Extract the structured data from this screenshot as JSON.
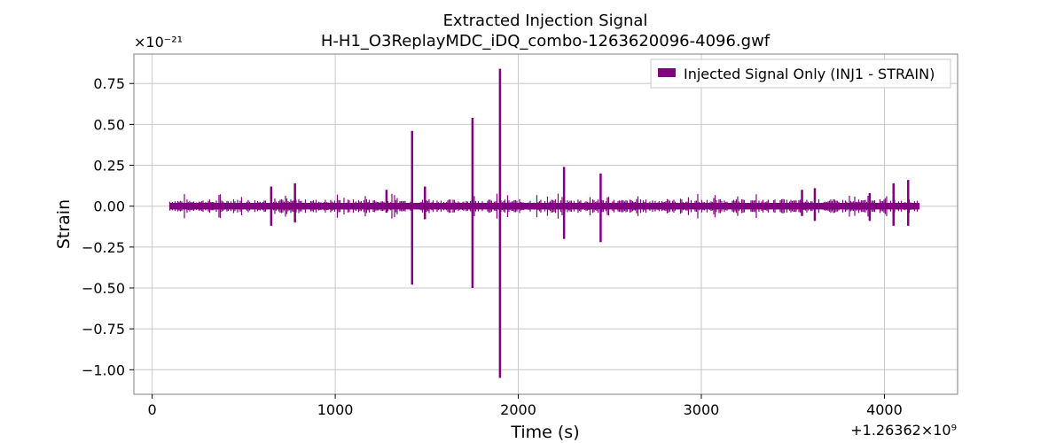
{
  "chart_data": {
    "type": "line",
    "title": "Extracted Injection Signal",
    "subtitle": "H-H1_O3ReplayMDC_iDQ_combo-1263620096-4096.gwf",
    "xlabel": "Time (s)",
    "ylabel": "Strain",
    "x_offset_text": "+1.26362×10⁹",
    "y_offset_text": "×10⁻²¹",
    "xlim": [
      -100,
      4400
    ],
    "ylim": [
      -1.15,
      0.93
    ],
    "x_ticks": [
      0,
      1000,
      2000,
      3000,
      4000
    ],
    "x_tick_labels": [
      "0",
      "1000",
      "2000",
      "3000",
      "4000"
    ],
    "y_ticks": [
      0.75,
      0.5,
      0.25,
      0.0,
      -0.25,
      -0.5,
      -0.75,
      -1.0
    ],
    "y_tick_labels": [
      "0.75",
      "0.50",
      "0.25",
      "0.00",
      "−0.25",
      "−0.50",
      "−0.75",
      "−1.00"
    ],
    "grid": true,
    "legend_position": "top-right",
    "series": [
      {
        "name": "Injected Signal Only (INJ1 - STRAIN)",
        "color": "#800080",
        "x_range": [
          96,
          4192
        ],
        "baseline_band": [
          -0.02,
          0.02
        ],
        "spikes": [
          {
            "x": 650,
            "max": 0.12,
            "min": -0.12
          },
          {
            "x": 780,
            "max": 0.14,
            "min": -0.1
          },
          {
            "x": 1280,
            "max": 0.1,
            "min": -0.04
          },
          {
            "x": 1420,
            "max": 0.46,
            "min": -0.48
          },
          {
            "x": 1490,
            "max": 0.12,
            "min": -0.08
          },
          {
            "x": 1750,
            "max": 0.54,
            "min": -0.5
          },
          {
            "x": 1900,
            "max": 0.84,
            "min": -1.05
          },
          {
            "x": 2250,
            "max": 0.24,
            "min": -0.2
          },
          {
            "x": 2450,
            "max": 0.2,
            "min": -0.22
          },
          {
            "x": 3550,
            "max": 0.1,
            "min": -0.06
          },
          {
            "x": 3620,
            "max": 0.11,
            "min": -0.09
          },
          {
            "x": 3920,
            "max": 0.08,
            "min": -0.09
          },
          {
            "x": 4050,
            "max": 0.14,
            "min": -0.12
          },
          {
            "x": 4130,
            "max": 0.16,
            "min": -0.12
          }
        ]
      }
    ]
  }
}
